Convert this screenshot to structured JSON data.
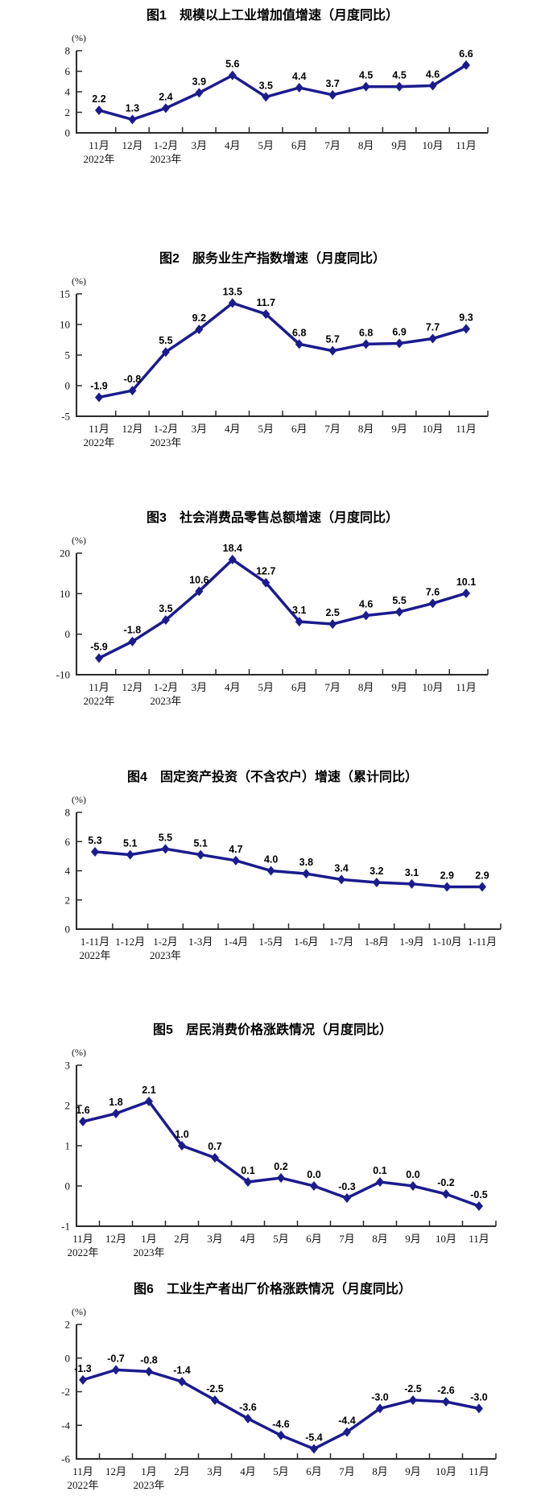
{
  "page": {
    "background": "#ffffff"
  },
  "colors": {
    "line": "#1b1b8e",
    "axis": "#2b2b2b",
    "value_text": "#000000",
    "tick_text": "#111111"
  },
  "chart_data": [
    {
      "type": "line",
      "title": "图1　规模以上工业增加值增速（月度同比）",
      "unit": "(%)",
      "ylim": [
        0,
        8
      ],
      "yticks": [
        0,
        2,
        4,
        6,
        8
      ],
      "grid": false,
      "categories": [
        "11月",
        "12月",
        "1-2月",
        "3月",
        "4月",
        "5月",
        "6月",
        "7月",
        "8月",
        "9月",
        "10月",
        "11月"
      ],
      "year_labels": [
        {
          "index": 0,
          "label": "2022年"
        },
        {
          "index": 2,
          "label": "2023年"
        }
      ],
      "values": [
        2.2,
        1.3,
        2.4,
        3.9,
        5.6,
        3.5,
        4.4,
        3.7,
        4.5,
        4.5,
        4.6,
        6.6
      ]
    },
    {
      "type": "line",
      "title": "图2　服务业生产指数增速（月度同比）",
      "unit": "(%)",
      "ylim": [
        -5,
        15
      ],
      "yticks": [
        -5,
        0,
        5,
        10,
        15
      ],
      "grid": false,
      "categories": [
        "11月",
        "12月",
        "1-2月",
        "3月",
        "4月",
        "5月",
        "6月",
        "7月",
        "8月",
        "9月",
        "10月",
        "11月"
      ],
      "year_labels": [
        {
          "index": 0,
          "label": "2022年"
        },
        {
          "index": 2,
          "label": "2023年"
        }
      ],
      "values": [
        -1.9,
        -0.8,
        5.5,
        9.2,
        13.5,
        11.7,
        6.8,
        5.7,
        6.8,
        6.9,
        7.7,
        9.3
      ]
    },
    {
      "type": "line",
      "title": "图3　社会消费品零售总额增速（月度同比）",
      "unit": "(%)",
      "ylim": [
        -10,
        20
      ],
      "yticks": [
        -10,
        0,
        10,
        20
      ],
      "grid": false,
      "categories": [
        "11月",
        "12月",
        "1-2月",
        "3月",
        "4月",
        "5月",
        "6月",
        "7月",
        "8月",
        "9月",
        "10月",
        "11月"
      ],
      "year_labels": [
        {
          "index": 0,
          "label": "2022年"
        },
        {
          "index": 2,
          "label": "2023年"
        }
      ],
      "values": [
        -5.9,
        -1.8,
        3.5,
        10.6,
        18.4,
        12.7,
        3.1,
        2.5,
        4.6,
        5.5,
        7.6,
        10.1
      ]
    },
    {
      "type": "line",
      "title": "图4　固定资产投资（不含农户）增速（累计同比）",
      "unit": "(%)",
      "ylim": [
        0,
        8
      ],
      "yticks": [
        0,
        2,
        4,
        6,
        8
      ],
      "grid": false,
      "categories": [
        "1-11月",
        "1-12月",
        "1-2月",
        "1-3月",
        "1-4月",
        "1-5月",
        "1-6月",
        "1-7月",
        "1-8月",
        "1-9月",
        "1-10月",
        "1-11月"
      ],
      "year_labels": [
        {
          "index": 0,
          "label": "2022年"
        },
        {
          "index": 2,
          "label": "2023年"
        }
      ],
      "values": [
        5.3,
        5.1,
        5.5,
        5.1,
        4.7,
        4.0,
        3.8,
        3.4,
        3.2,
        3.1,
        2.9,
        2.9
      ]
    },
    {
      "type": "line",
      "title": "图5　居民消费价格涨跌情况（月度同比）",
      "unit": "(%)",
      "ylim": [
        -1,
        3
      ],
      "yticks": [
        -1,
        0,
        1,
        2,
        3
      ],
      "grid": false,
      "categories": [
        "11月",
        "12月",
        "1月",
        "2月",
        "3月",
        "4月",
        "5月",
        "6月",
        "7月",
        "8月",
        "9月",
        "10月",
        "11月"
      ],
      "year_labels": [
        {
          "index": 0,
          "label": "2022年"
        },
        {
          "index": 2,
          "label": "2023年"
        }
      ],
      "values": [
        1.6,
        1.8,
        2.1,
        1.0,
        0.7,
        0.1,
        0.2,
        0.0,
        -0.3,
        0.1,
        0.0,
        -0.2,
        -0.5
      ]
    },
    {
      "type": "line",
      "title": "图6　工业生产者出厂价格涨跌情况（月度同比）",
      "unit": "(%)",
      "ylim": [
        -6,
        2
      ],
      "yticks": [
        -6,
        -4,
        -2,
        0,
        2
      ],
      "grid": false,
      "categories": [
        "11月",
        "12月",
        "1月",
        "2月",
        "3月",
        "4月",
        "5月",
        "6月",
        "7月",
        "8月",
        "9月",
        "10月",
        "11月"
      ],
      "year_labels": [
        {
          "index": 0,
          "label": "2022年"
        },
        {
          "index": 2,
          "label": "2023年"
        }
      ],
      "values": [
        -1.3,
        -0.7,
        -0.8,
        -1.4,
        -2.5,
        -3.6,
        -4.6,
        -5.4,
        -4.4,
        -3.0,
        -2.5,
        -2.6,
        -3.0
      ]
    }
  ]
}
